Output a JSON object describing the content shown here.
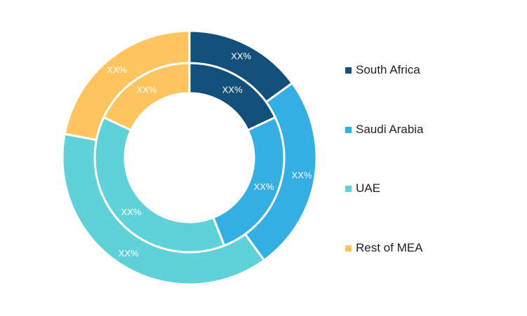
{
  "chart_data": {
    "type": "pie",
    "variant": "double-donut",
    "categories": [
      "South Africa",
      "Saudi Arabia",
      "UAE",
      "Rest of MEA"
    ],
    "colors": [
      "#124f7a",
      "#35afe3",
      "#5fd1d9",
      "#fdc45f"
    ],
    "series": [
      {
        "ring": "outer",
        "values": [
          15,
          25,
          38,
          22
        ],
        "labels": [
          "XX%",
          "XX%",
          "XX%",
          "XX%"
        ]
      },
      {
        "ring": "inner",
        "values": [
          18,
          26,
          38,
          18
        ],
        "labels": [
          "XX%",
          "XX%",
          "XX%",
          "XX%"
        ]
      }
    ],
    "legend": {
      "position": "right"
    }
  }
}
